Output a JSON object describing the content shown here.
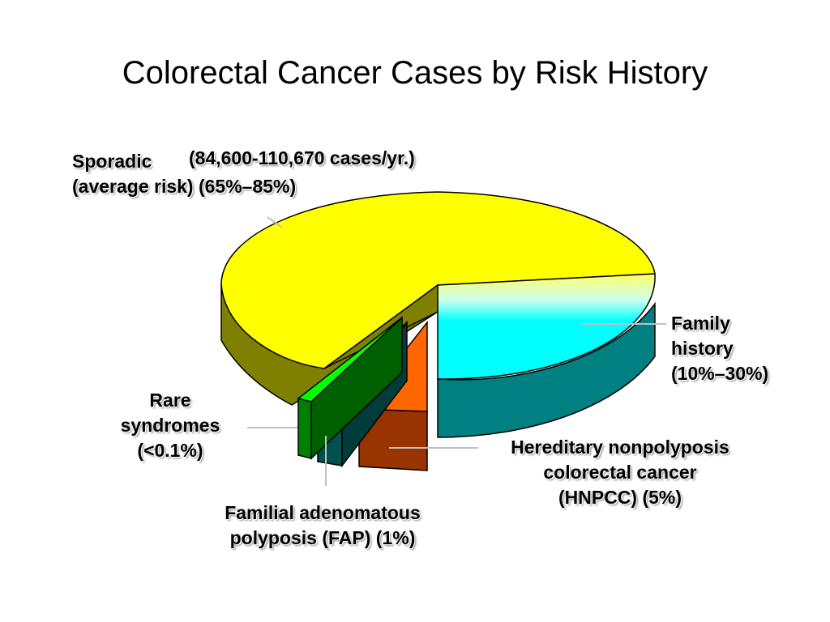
{
  "title": "Colorectal Cancer Cases by Risk History",
  "colors": {
    "sporadic_top": "#ffff00",
    "sporadic_side": "#808000",
    "family_top": "#00ffff",
    "family_side": "#008080",
    "hnpcc_top": "#ff6600",
    "hnpcc_side": "#993300",
    "fap_top": "#008080",
    "fap_side": "#005050",
    "rare_top": "#00ff00",
    "rare_side": "#008000",
    "leader": "#c0c0c0"
  },
  "chart_data": {
    "type": "pie",
    "style": "3d-exploded",
    "slices": [
      {
        "id": "sporadic",
        "lines": [
          "Sporadic",
          "(average risk) (65%–85%)"
        ],
        "note": "(84,600-110,670 cases/yr.)",
        "range": "65%–85%",
        "color_key": "sporadic"
      },
      {
        "id": "family",
        "lines": [
          "Family",
          "history",
          "(10%–30%)"
        ],
        "range": "10%–30%",
        "color_key": "family"
      },
      {
        "id": "hnpcc",
        "lines": [
          "Hereditary nonpolyposis",
          "colorectal cancer",
          "(HNPCC) (5%)"
        ],
        "range": "5%",
        "color_key": "hnpcc"
      },
      {
        "id": "fap",
        "lines": [
          "Familial adenomatous",
          "polyposis (FAP) (1%)"
        ],
        "range": "1%",
        "color_key": "fap"
      },
      {
        "id": "rare",
        "lines": [
          "Rare",
          "syndromes",
          "(<0.1%)"
        ],
        "range": "<0.1%",
        "color_key": "rare"
      }
    ]
  }
}
